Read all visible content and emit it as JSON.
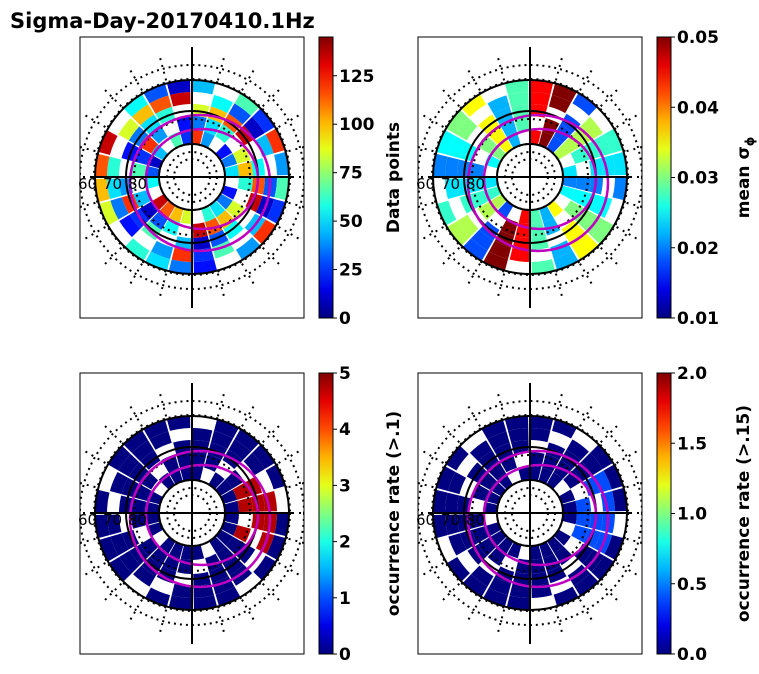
{
  "figure": {
    "title": "Sigma-Day-20170410.1Hz"
  },
  "chart_data": [
    {
      "type": "heatmap",
      "id": "data_points",
      "projection": "polar",
      "colormap": "jet",
      "colorbar": {
        "label": "Data points",
        "min": 0,
        "max": 145,
        "ticks": [
          "0",
          "25",
          "50",
          "75",
          "100",
          "125"
        ],
        "tick_values": [
          0,
          25,
          50,
          75,
          100,
          125
        ]
      },
      "inline_labels": [
        "60",
        "70",
        "80"
      ],
      "ring_values": [
        5,
        20,
        35,
        50,
        60,
        70,
        85,
        100,
        115,
        135,
        140,
        55,
        30,
        10,
        45,
        90,
        65,
        25,
        120,
        40
      ]
    },
    {
      "type": "heatmap",
      "id": "mean_sigma",
      "projection": "polar",
      "colormap": "jet",
      "colorbar": {
        "label": "mean σϕ",
        "label_main": "mean σ",
        "label_sub": "ϕ",
        "min": 0.01,
        "max": 0.05,
        "ticks": [
          "0.01",
          "0.02",
          "0.03",
          "0.04",
          "0.05"
        ],
        "tick_values": [
          0.01,
          0.02,
          0.03,
          0.04,
          0.05
        ]
      },
      "inline_labels": [
        "60",
        "70",
        "80"
      ],
      "ring_values": [
        0.02,
        0.025,
        0.03,
        0.035,
        0.022,
        0.028,
        0.045,
        0.05,
        0.018,
        0.032,
        0.027,
        0.024
      ]
    },
    {
      "type": "heatmap",
      "id": "occurrence_01",
      "projection": "polar",
      "colormap": "jet",
      "colorbar": {
        "label": "occurrence rate (>.1)",
        "min": 0,
        "max": 5,
        "ticks": [
          "0",
          "1",
          "2",
          "3",
          "4",
          "5"
        ],
        "tick_values": [
          0,
          1,
          2,
          3,
          4,
          5
        ]
      },
      "inline_labels": [
        "60",
        "70",
        "80"
      ],
      "ring_values": [
        0,
        0,
        0,
        0.2,
        0,
        0.5,
        0,
        5,
        4.5,
        2.5,
        0,
        1.5
      ]
    },
    {
      "type": "heatmap",
      "id": "occurrence_015",
      "projection": "polar",
      "colormap": "jet",
      "colorbar": {
        "label": "occurrence rate (>.15)",
        "min": 0,
        "max": 2,
        "ticks": [
          "0.0",
          "0.5",
          "1.0",
          "1.5",
          "2.0"
        ],
        "tick_values": [
          0,
          0.5,
          1,
          1.5,
          2
        ]
      },
      "inline_labels": [
        "60",
        "70",
        "80"
      ],
      "ring_values": [
        0,
        0,
        0,
        0.1,
        0,
        0.8,
        0,
        1.5,
        0,
        0.4,
        0,
        0.2
      ]
    }
  ],
  "colors": {
    "jet_dark_blue": "#00007f",
    "ring_magenta": "#c000c0",
    "axis": "#000000"
  }
}
